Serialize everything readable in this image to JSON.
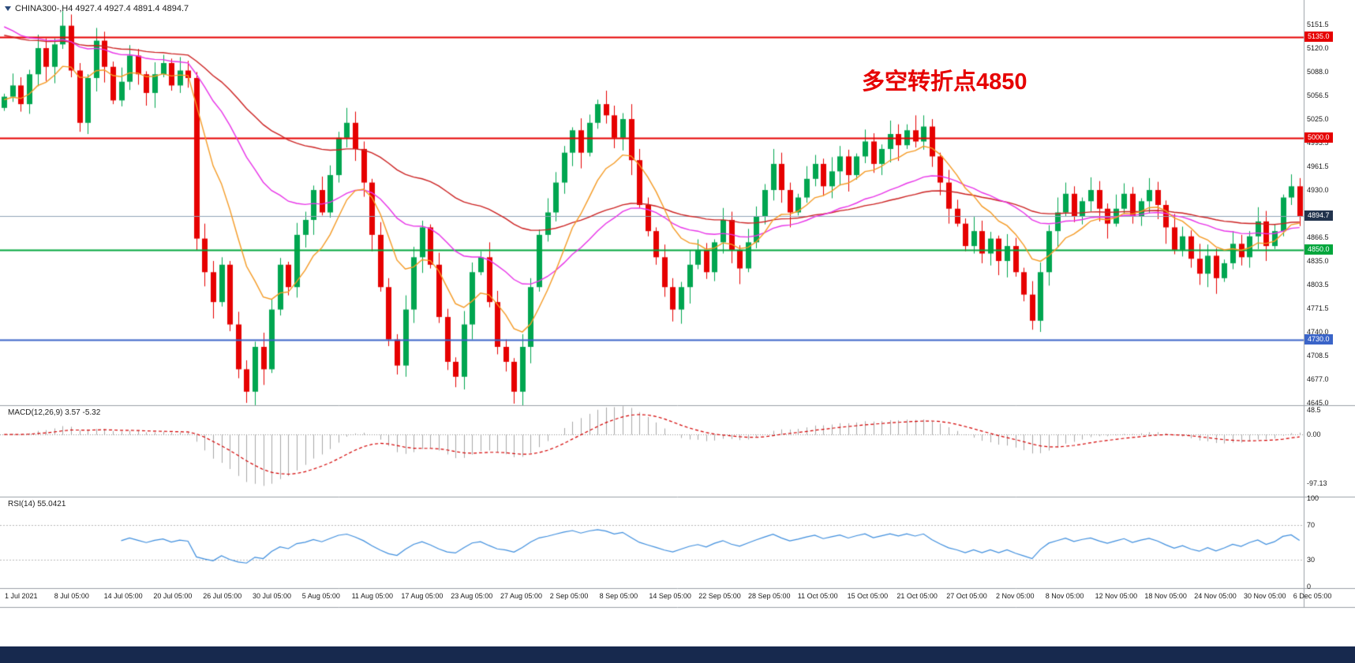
{
  "ui_colors": {
    "taskbar": "#17294e",
    "background": "#ffffff"
  },
  "symbol_info": {
    "text": "CHINA300-,H4 4927.4 4927.4 4891.4 4894.7"
  },
  "annotation": {
    "text": "多空转折点4850",
    "color": "#e60000"
  },
  "chart_data": {
    "type": "candlestick",
    "symbol": "CHINA300-",
    "timeframe": "H4",
    "ohlc": {
      "open": 4927.4,
      "high": 4927.4,
      "low": 4891.4,
      "close": 4894.7
    },
    "colors": {
      "up": "#00a650",
      "down": "#e60000"
    },
    "price_axis": {
      "min": 4644,
      "max": 5176,
      "labels": [
        5151.5,
        5120.0,
        5088.0,
        5056.5,
        5025.0,
        4993.5,
        4961.5,
        4930.0,
        4866.5,
        4835.0,
        4803.5,
        4771.5,
        4740.0,
        4708.5,
        4677.0,
        4645.0
      ]
    },
    "levels": [
      {
        "value": 5135.0,
        "color": "#e60000",
        "width": 2
      },
      {
        "value": 5000.0,
        "color": "#e60000",
        "width": 2
      },
      {
        "value": 4850.0,
        "color": "#00a63c",
        "width": 2
      },
      {
        "value": 4730.0,
        "color": "#3a64c8",
        "width": 2
      },
      {
        "value": 4894.7,
        "color": "#90a4b8",
        "width": 1
      }
    ],
    "badges": [
      {
        "text": "5135.0",
        "value": 5135.0,
        "bg": "#e60000"
      },
      {
        "text": "5000.0",
        "value": 5000.0,
        "bg": "#e60000"
      },
      {
        "text": "4894.7",
        "value": 4894.7,
        "bg": "#22334d"
      },
      {
        "text": "4850.0",
        "value": 4850.0,
        "bg": "#00a63c"
      },
      {
        "text": "4730.0",
        "value": 4730.0,
        "bg": "#3a64c8"
      }
    ],
    "open_seed": 5040,
    "closes": [
      5055,
      5070,
      5045,
      5085,
      5120,
      5095,
      5125,
      5150,
      5090,
      5020,
      5080,
      5130,
      5095,
      5050,
      5075,
      5110,
      5085,
      5060,
      5085,
      5100,
      5070,
      5090,
      5080,
      4865,
      4820,
      4780,
      4830,
      4750,
      4690,
      4660,
      4720,
      4690,
      4770,
      4830,
      4800,
      4870,
      4890,
      4930,
      4900,
      4950,
      5000,
      5020,
      4985,
      4940,
      4870,
      4800,
      4730,
      4695,
      4770,
      4840,
      4880,
      4830,
      4760,
      4700,
      4680,
      4750,
      4820,
      4840,
      4780,
      4720,
      4700,
      4660,
      4720,
      4800,
      4870,
      4900,
      4940,
      4980,
      5010,
      4980,
      5020,
      5045,
      5030,
      5000,
      5025,
      4970,
      4910,
      4875,
      4840,
      4800,
      4770,
      4800,
      4830,
      4850,
      4820,
      4860,
      4890,
      4850,
      4825,
      4860,
      4895,
      4930,
      4965,
      4930,
      4900,
      4920,
      4945,
      4965,
      4935,
      4955,
      4975,
      4950,
      4975,
      4995,
      4965,
      4985,
      5005,
      4990,
      5010,
      4995,
      5015,
      4975,
      4940,
      4905,
      4885,
      4855,
      4875,
      4845,
      4865,
      4835,
      4855,
      4820,
      4790,
      4755,
      4820,
      4875,
      4900,
      4925,
      4895,
      4915,
      4930,
      4905,
      4885,
      4905,
      4925,
      4895,
      4915,
      4930,
      4910,
      4880,
      4850,
      4868,
      4838,
      4818,
      4842,
      4812,
      4832,
      4858,
      4840,
      4868,
      4888,
      4855,
      4875,
      4920,
      4935,
      4894.7
    ],
    "moving_averages": [
      {
        "name": "ma-slow",
        "period": 60,
        "seed": 5140,
        "color": "#cc2020"
      },
      {
        "name": "ma-mid",
        "period": 30,
        "seed": 5155,
        "color": "#e832e8"
      },
      {
        "name": "ma-fast",
        "period": 10,
        "seed": 5050,
        "color": "#f59a23"
      }
    ],
    "macd": {
      "label": "MACD(12,26,9) 3.57 -5.32",
      "fast": 12,
      "slow": 26,
      "signal": 9,
      "values_shown": [
        3.57,
        -5.32
      ],
      "range": [
        -120,
        55
      ],
      "hist_color": "#a8a8a8",
      "signal_color": "#d40000",
      "axis_labels": [
        {
          "t": "48.5",
          "v": 48.5
        },
        {
          "t": "0.00",
          "v": 0
        },
        {
          "t": "-97.13",
          "v": -97.13
        }
      ]
    },
    "rsi": {
      "label": "RSI(14) 55.0421",
      "period": 14,
      "value_shown": 55.0421,
      "range": [
        0,
        100
      ],
      "levels": [
        70,
        30
      ],
      "color": "#3e8ede",
      "axis_labels": [
        {
          "t": "100",
          "v": 100
        },
        {
          "t": "70",
          "v": 70
        },
        {
          "t": "30",
          "v": 30
        },
        {
          "t": "0",
          "v": 0
        }
      ]
    },
    "time_axis": {
      "labels": [
        "1 Jul 2021",
        "8 Jul 05:00",
        "14 Jul 05:00",
        "20 Jul 05:00",
        "26 Jul 05:00",
        "30 Jul 05:00",
        "5 Aug 05:00",
        "11 Aug 05:00",
        "17 Aug 05:00",
        "23 Aug 05:00",
        "27 Aug 05:00",
        "2 Sep 05:00",
        "8 Sep 05:00",
        "14 Sep 05:00",
        "22 Sep 05:00",
        "28 Sep 05:00",
        "11 Oct 05:00",
        "15 Oct 05:00",
        "21 Oct 05:00",
        "27 Oct 05:00",
        "2 Nov 05:00",
        "8 Nov 05:00",
        "12 Nov 05:00",
        "18 Nov 05:00",
        "24 Nov 05:00",
        "30 Nov 05:00",
        "6 Dec 05:00"
      ]
    }
  }
}
